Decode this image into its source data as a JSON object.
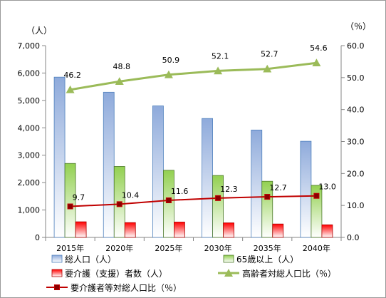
{
  "chart_data": {
    "type": "bar",
    "categories": [
      "2015年",
      "2020年",
      "2025年",
      "2030年",
      "2035年",
      "2040年"
    ],
    "left_axis": {
      "unit": "（人）",
      "ylim": [
        0,
        7000
      ],
      "ticks": [
        "0",
        "1,000",
        "2,000",
        "3,000",
        "4,000",
        "5,000",
        "6,000",
        "7,000"
      ]
    },
    "right_axis": {
      "unit": "（％）",
      "ylim": [
        0,
        60
      ],
      "ticks": [
        "0.0",
        "10.0",
        "20.0",
        "30.0",
        "40.0",
        "50.0",
        "60.0"
      ]
    },
    "series": [
      {
        "name": "総人口（人）",
        "kind": "bar",
        "axis": "left",
        "color": "#8eaadb",
        "values": [
          5850,
          5300,
          4800,
          4340,
          3920,
          3510
        ]
      },
      {
        "name": "65歳以上（人）",
        "kind": "bar",
        "axis": "left",
        "color": "#92d050",
        "values": [
          2700,
          2590,
          2450,
          2260,
          2050,
          1900
        ]
      },
      {
        "name": "要介護（支援）者数（人）",
        "kind": "bar",
        "axis": "left",
        "color": "#ff0000",
        "values": [
          570,
          540,
          560,
          530,
          490,
          460
        ]
      },
      {
        "name": "高齢者対総人口比（％）",
        "kind": "line",
        "axis": "right",
        "color": "#9bbb59",
        "marker": "triangle",
        "values": [
          46.2,
          48.8,
          50.9,
          52.1,
          52.7,
          54.6
        ],
        "labels": [
          "46.2",
          "48.8",
          "50.9",
          "52.1",
          "52.7",
          "54.6"
        ]
      },
      {
        "name": "要介護者等対総人口比（％）",
        "kind": "line",
        "axis": "right",
        "color": "#c00000",
        "marker": "square",
        "values": [
          9.7,
          10.4,
          11.6,
          12.3,
          12.7,
          13.0
        ],
        "labels": [
          "9.7",
          "10.4",
          "11.6",
          "12.3",
          "12.7",
          "13.0"
        ]
      }
    ],
    "legend_position": "bottom",
    "grid": false
  }
}
